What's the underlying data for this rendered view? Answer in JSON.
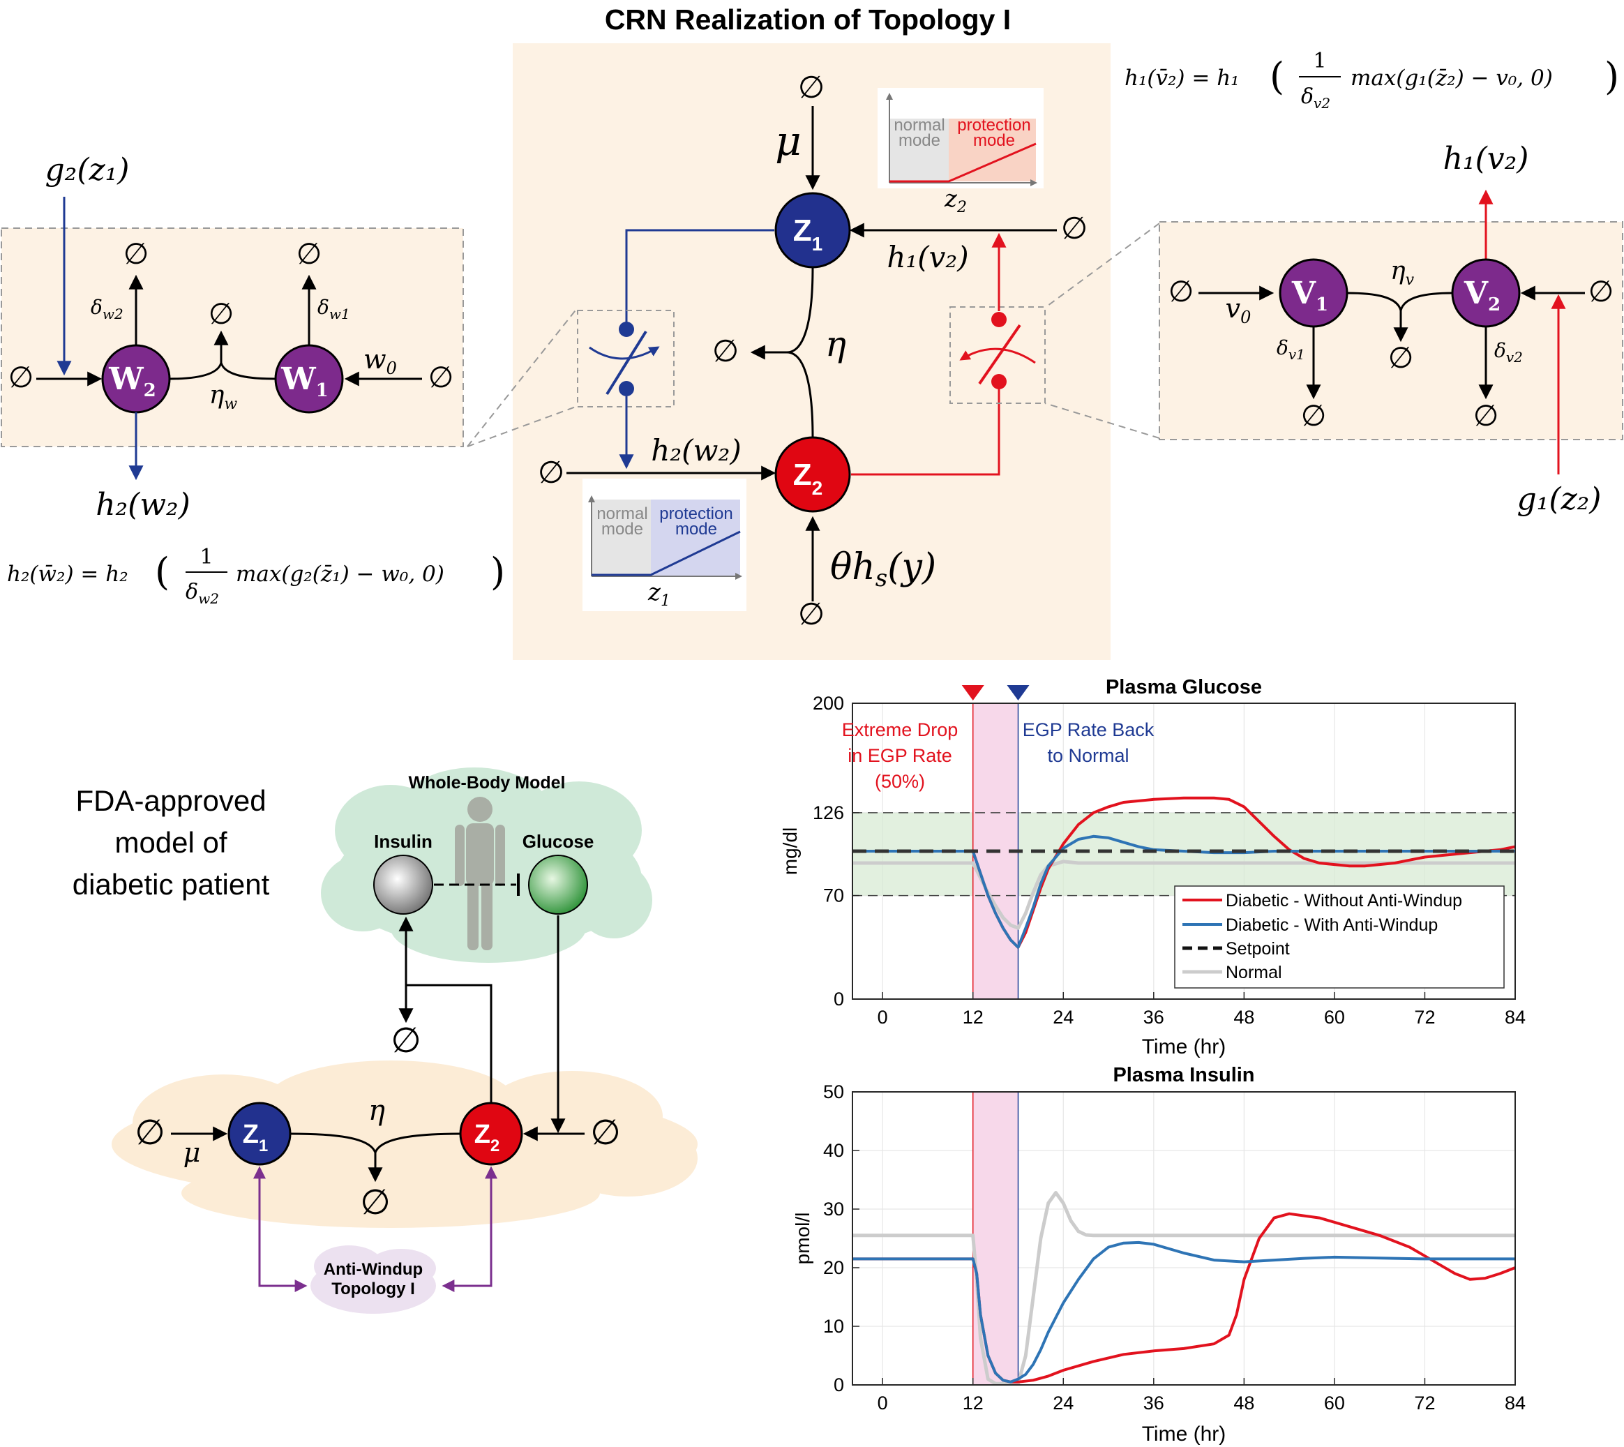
{
  "title": "CRN Realization of Topology I",
  "symbols": {
    "empty": "∅",
    "mu": "μ",
    "eta": "η",
    "eta_w": "η",
    "eta_w_sub": "w",
    "eta_v": "η",
    "eta_v_sub": "v"
  },
  "crn": {
    "z1": "Z",
    "z1_sub": "1",
    "z2": "Z",
    "z2_sub": "2",
    "h1_v2": "h₁(v₂)",
    "h2_w2": "h₂(w₂)",
    "theta_hs": "θh",
    "theta_hs_sub": "s",
    "theta_hs_arg": "(y)"
  },
  "inset_z2": {
    "left_label_1": "normal",
    "left_label_2": "mode",
    "right_label_1": "protection",
    "right_label_2": "mode",
    "axis": "z",
    "axis_sub": "2"
  },
  "inset_z1": {
    "left_label_1": "normal",
    "left_label_2": "mode",
    "right_label_1": "protection",
    "right_label_2": "mode",
    "axis": "z",
    "axis_sub": "1"
  },
  "w_block": {
    "w2": "W",
    "w2_sub": "2",
    "w1": "W",
    "w1_sub": "1",
    "delta_w2": "δ",
    "delta_w2_sub": "w2",
    "delta_w1": "δ",
    "delta_w1_sub": "w1",
    "w0": "w",
    "w0_sub": "0",
    "g2_z1": "g₂(z₁)",
    "h2_w2": "h₂(w₂)",
    "formula_lhs": "h₂(w̄₂) = h₂",
    "formula_frac_num": "1",
    "formula_frac_den": "δ",
    "formula_frac_den_sub": "w2",
    "formula_rest": "max(g₂(z̄₁) − w₀, 0)"
  },
  "v_block": {
    "v1": "V",
    "v1_sub": "1",
    "v2": "V",
    "v2_sub": "2",
    "delta_v1": "δ",
    "delta_v1_sub": "v1",
    "delta_v2": "δ",
    "delta_v2_sub": "v2",
    "v0": "v",
    "v0_sub": "0",
    "h1_v2": "h₁(v₂)",
    "g1_z2": "g₁(z₂)",
    "formula_lhs": "h₁(v̄₂) = h₁",
    "formula_frac_num": "1",
    "formula_frac_den": "δ",
    "formula_frac_den_sub": "v2",
    "formula_rest": "max(g₁(z̄₂) − v₀, 0)"
  },
  "patient": {
    "fda_line1": "FDA-approved",
    "fda_line2": "model of",
    "fda_line3": "diabetic patient",
    "whole_body": "Whole-Body Model",
    "insulin": "Insulin",
    "glucose": "Glucose",
    "anti_windup_1": "Anti-Windup",
    "anti_windup_2": "Topology I",
    "z1": "Z",
    "z1_sub": "1",
    "z2": "Z",
    "z2_sub": "2"
  },
  "colors": {
    "bg_peach": "#fdf2e4",
    "blue_node": "#22318e",
    "red_node": "#e00612",
    "purple_node": "#7d2a8c",
    "blue_line": "#1f3a93",
    "red_line": "#e2121e",
    "purple_line": "#7b2f8e",
    "highlight_pink": "#f7d8ea",
    "normal_band": "#d6ead1",
    "cloud_green": "#cfe9d8",
    "cloud_peach": "#fcecd6",
    "cloud_purple": "#ece1f0"
  },
  "chart_data": [
    {
      "type": "line",
      "title": "Plasma Glucose",
      "xlabel": "Time (hr)",
      "ylabel": "mg/dl",
      "xlim": [
        -4,
        84
      ],
      "ylim": [
        0,
        200
      ],
      "xticks": [
        0,
        12,
        24,
        36,
        48,
        60,
        72,
        84
      ],
      "yticks": [
        0,
        70,
        126,
        200
      ],
      "grid": true,
      "legend_position": "bottom-right",
      "annotations": [
        {
          "text_1": "Extreme Drop",
          "text_2": "in EGP Rate",
          "text_3": "(50%)",
          "x": 12,
          "color": "#e2121e"
        },
        {
          "text_1": "EGP Rate Back",
          "text_2": "to Normal",
          "x": 18,
          "color": "#1f3a93"
        }
      ],
      "shaded_x": [
        12,
        18
      ],
      "normal_band": [
        70,
        126
      ],
      "series": [
        {
          "name": "Diabetic - Without Anti-Windup",
          "color": "#e2121e",
          "style": "solid",
          "x": [
            -4,
            12,
            13,
            14,
            15,
            16,
            17,
            18,
            19,
            20,
            21,
            22,
            24,
            26,
            28,
            30,
            32,
            36,
            40,
            44,
            46,
            48,
            50,
            52,
            54,
            56,
            58,
            60,
            62,
            64,
            66,
            68,
            70,
            72,
            74,
            76,
            78,
            80,
            82,
            84
          ],
          "y": [
            100,
            100,
            85,
            70,
            58,
            48,
            40,
            35,
            45,
            60,
            75,
            88,
            105,
            118,
            126,
            130,
            133,
            135,
            136,
            136,
            135,
            130,
            120,
            110,
            101,
            95,
            92,
            91,
            90,
            90,
            91,
            92,
            94,
            96,
            97,
            98,
            99,
            100,
            101,
            103
          ]
        },
        {
          "name": "Diabetic - With Anti-Windup",
          "color": "#2e74b5",
          "style": "solid",
          "x": [
            -4,
            12,
            13,
            14,
            15,
            16,
            17,
            18,
            19,
            20,
            21,
            22,
            24,
            26,
            28,
            30,
            32,
            34,
            36,
            40,
            44,
            48,
            52,
            56,
            60,
            64,
            68,
            72,
            76,
            80,
            84
          ],
          "y": [
            100,
            100,
            85,
            70,
            58,
            48,
            40,
            35,
            48,
            62,
            78,
            90,
            102,
            108,
            110,
            109,
            106,
            103,
            101,
            100,
            99,
            99,
            100,
            100,
            100,
            100,
            100,
            100,
            100,
            100,
            100
          ]
        },
        {
          "name": "Setpoint",
          "color": "#333333",
          "style": "dashed",
          "x": [
            -4,
            84
          ],
          "y": [
            100,
            100
          ]
        },
        {
          "name": "Normal",
          "color": "#cccccc",
          "style": "solid",
          "x": [
            -4,
            12,
            13,
            14,
            15,
            16,
            17,
            18,
            19,
            20,
            21,
            22,
            24,
            26,
            28,
            30,
            36,
            48,
            60,
            72,
            84
          ],
          "y": [
            92,
            92,
            82,
            72,
            63,
            55,
            50,
            48,
            58,
            72,
            84,
            90,
            93,
            92,
            92,
            92,
            92,
            92,
            92,
            92,
            92
          ]
        }
      ]
    },
    {
      "type": "line",
      "title": "Plasma Insulin",
      "xlabel": "Time (hr)",
      "ylabel": "pmol/l",
      "xlim": [
        -4,
        84
      ],
      "ylim": [
        0,
        50
      ],
      "xticks": [
        0,
        12,
        24,
        36,
        48,
        60,
        72,
        84
      ],
      "yticks": [
        0,
        10,
        20,
        30,
        40,
        50
      ],
      "grid": true,
      "shaded_x": [
        12,
        18
      ],
      "series": [
        {
          "name": "Diabetic - Without Anti-Windup",
          "color": "#e2121e",
          "style": "solid",
          "x": [
            -4,
            12,
            12.5,
            13,
            14,
            15,
            16,
            17,
            18,
            20,
            22,
            24,
            28,
            32,
            36,
            40,
            44,
            46,
            47,
            48,
            50,
            52,
            54,
            58,
            62,
            66,
            70,
            72,
            74,
            76,
            78,
            80,
            82,
            84
          ],
          "y": [
            21.5,
            21.5,
            19,
            12,
            5,
            2,
            0.8,
            0.5,
            0.5,
            0.8,
            1.5,
            2.5,
            4,
            5.2,
            5.8,
            6.2,
            7,
            8.5,
            12,
            18,
            25,
            28.5,
            29.2,
            28.5,
            27,
            25.5,
            23.5,
            22,
            20.5,
            19,
            18,
            18.2,
            19,
            20
          ]
        },
        {
          "name": "Diabetic - With Anti-Windup",
          "color": "#2e74b5",
          "style": "solid",
          "x": [
            -4,
            12,
            12.5,
            13,
            14,
            15,
            16,
            17,
            18,
            19,
            20,
            21,
            22,
            24,
            26,
            28,
            30,
            32,
            34,
            36,
            40,
            44,
            48,
            52,
            56,
            60,
            64,
            68,
            72,
            76,
            80,
            84
          ],
          "y": [
            21.5,
            21.5,
            19,
            12,
            5,
            2,
            0.8,
            0.5,
            1,
            1.8,
            3.5,
            6,
            9,
            14,
            18,
            21.5,
            23.5,
            24.2,
            24.3,
            24,
            22.5,
            21.3,
            21,
            21.3,
            21.6,
            21.8,
            21.7,
            21.6,
            21.5,
            21.5,
            21.5,
            21.5
          ]
        },
        {
          "name": "Normal",
          "color": "#cccccc",
          "style": "solid",
          "x": [
            -4,
            12,
            12.5,
            13,
            14,
            15,
            16,
            18,
            19,
            20,
            21,
            22,
            23,
            24,
            25,
            26,
            27,
            28,
            30,
            36,
            48,
            60,
            72,
            84
          ],
          "y": [
            25.5,
            25.5,
            18,
            8,
            1,
            0.2,
            0.2,
            0.2,
            5,
            15,
            25,
            31,
            32.8,
            31,
            28,
            26.2,
            25.6,
            25.5,
            25.5,
            25.5,
            25.5,
            25.5,
            25.5,
            25.5
          ]
        }
      ]
    }
  ]
}
